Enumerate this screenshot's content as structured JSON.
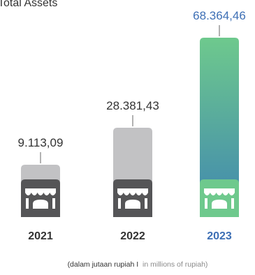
{
  "chart_data": {
    "type": "bar",
    "title": "Total Assets",
    "categories": [
      "2021",
      "2022",
      "2023"
    ],
    "values": [
      9113.09,
      28381.43,
      68364.46
    ],
    "value_labels": [
      "9.113,09",
      "28.381,43",
      "68.364,46"
    ],
    "ylim": [
      0,
      68364.46
    ],
    "highlight_category": "2023",
    "caption": {
      "primary": "(dalam jutaan rupiah I",
      "secondary": "in millions of rupiah)"
    },
    "grid": false,
    "legend": "none"
  },
  "colors": {
    "bar_default": "#c2c2c4",
    "bar_highlight_top": "#6ec98d",
    "bar_highlight_bottom": "#3f86b0",
    "store_icon_default": "#555557",
    "store_icon_highlight": "#6ec98d",
    "value_label_default": "#333333",
    "value_label_highlight": "#3d6fb5",
    "year_label_default": "#333333",
    "year_label_highlight": "#3d6fb5",
    "caption_primary": "#333333",
    "caption_secondary": "#8a8a8a",
    "leader_line": "#666666"
  },
  "icons": {
    "bar_icon": "storefront-icon"
  }
}
